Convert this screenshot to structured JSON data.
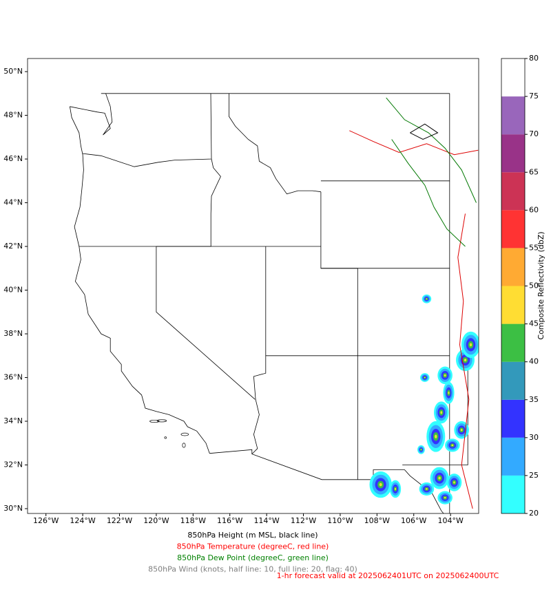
{
  "map": {
    "lonlim": [
      -127,
      -102.47
    ],
    "latlim": [
      29.78,
      50.6
    ],
    "lon_ticks": [
      {
        "value": -126,
        "label": "126°W"
      },
      {
        "value": -124,
        "label": "124°W"
      },
      {
        "value": -122,
        "label": "122°W"
      },
      {
        "value": -120,
        "label": "120°W"
      },
      {
        "value": -118,
        "label": "118°W"
      },
      {
        "value": -116,
        "label": "116°W"
      },
      {
        "value": -114,
        "label": "114°W"
      },
      {
        "value": -112,
        "label": "112°W"
      },
      {
        "value": -110,
        "label": "110°W"
      },
      {
        "value": -108,
        "label": "108°W"
      },
      {
        "value": -106,
        "label": "106°W"
      },
      {
        "value": -104,
        "label": "104°W"
      }
    ],
    "lat_ticks": [
      {
        "value": 30,
        "label": "30°N"
      },
      {
        "value": 32,
        "label": "32°N"
      },
      {
        "value": 34,
        "label": "34°N"
      },
      {
        "value": 36,
        "label": "36°N"
      },
      {
        "value": 38,
        "label": "38°N"
      },
      {
        "value": 40,
        "label": "40°N"
      },
      {
        "value": 42,
        "label": "42°N"
      },
      {
        "value": 44,
        "label": "44°N"
      },
      {
        "value": 46,
        "label": "46°N"
      },
      {
        "value": 48,
        "label": "48°N"
      },
      {
        "value": 50,
        "label": "50°N"
      }
    ]
  },
  "colorbar": {
    "label": "Composite Reflectivity (dbZ)",
    "ticks": [
      20,
      25,
      30,
      35,
      40,
      45,
      50,
      55,
      60,
      65,
      70,
      75,
      80
    ],
    "colors": [
      "#33ffff",
      "#33aaff",
      "#3333ff",
      "#3399bb",
      "#3cbf44",
      "#ffdd33",
      "#ffaa33",
      "#ff3333",
      "#cc3355",
      "#993388",
      "#9966bb",
      "#ffffff"
    ]
  },
  "captions": [
    {
      "text": "850hPa Height (m MSL, black line)",
      "color": "#000000"
    },
    {
      "text": "850hPa Temperature (degreeC, red line)",
      "color": "#ff0000"
    },
    {
      "text": "850hPa Dew Point (degreeC, green line)",
      "color": "#008000"
    },
    {
      "text": "850hPa Wind (knots, half line: 10, full line: 20, flag: 40)",
      "color": "#808080"
    }
  ],
  "forecast": {
    "text": "1-hr forecast valid at 2025062401UTC on 2025062400UTC",
    "color": "#ff0000"
  }
}
